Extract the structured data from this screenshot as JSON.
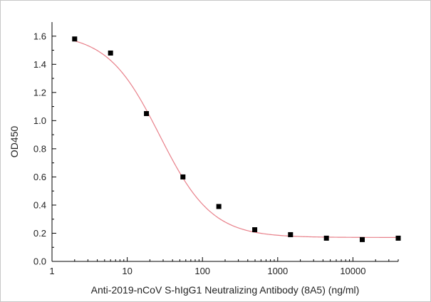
{
  "chart_data": {
    "type": "scatter",
    "title": "",
    "xlabel": "Anti-2019-nCoV S-hIgG1 Neutralizing Antibody (8A5) (ng/ml)",
    "ylabel": "OD450",
    "x_scale": "log",
    "xlim": [
      1,
      40000
    ],
    "ylim": [
      0,
      1.7
    ],
    "x_ticks": [
      {
        "value": 1,
        "label": "1"
      },
      {
        "value": 10,
        "label": "10"
      },
      {
        "value": 100,
        "label": "100"
      },
      {
        "value": 1000,
        "label": "1000"
      },
      {
        "value": 10000,
        "label": "10000"
      }
    ],
    "y_ticks": [
      {
        "value": 0.0,
        "label": "0.0"
      },
      {
        "value": 0.2,
        "label": "0.2"
      },
      {
        "value": 0.4,
        "label": "0.4"
      },
      {
        "value": 0.6,
        "label": "0.6"
      },
      {
        "value": 0.8,
        "label": "0.8"
      },
      {
        "value": 1.0,
        "label": "1.0"
      },
      {
        "value": 1.2,
        "label": "1.2"
      },
      {
        "value": 1.4,
        "label": "1.4"
      },
      {
        "value": 1.6,
        "label": "1.6"
      }
    ],
    "grid": false,
    "series": [
      {
        "points": [
          {
            "x": 2,
            "y": 1.58
          },
          {
            "x": 6,
            "y": 1.48
          },
          {
            "x": 18,
            "y": 1.05
          },
          {
            "x": 55,
            "y": 0.6
          },
          {
            "x": 165,
            "y": 0.39
          },
          {
            "x": 495,
            "y": 0.225
          },
          {
            "x": 1480,
            "y": 0.19
          },
          {
            "x": 4440,
            "y": 0.165
          },
          {
            "x": 13300,
            "y": 0.155
          },
          {
            "x": 40000,
            "y": 0.165
          }
        ],
        "marker": "square",
        "marker_color": "#000000"
      }
    ],
    "fit_curve": {
      "model": "4-parameter logistic",
      "top": 1.62,
      "bottom": 0.17,
      "ec50": 27,
      "hill": 1.25,
      "color": "#e8808a"
    }
  }
}
